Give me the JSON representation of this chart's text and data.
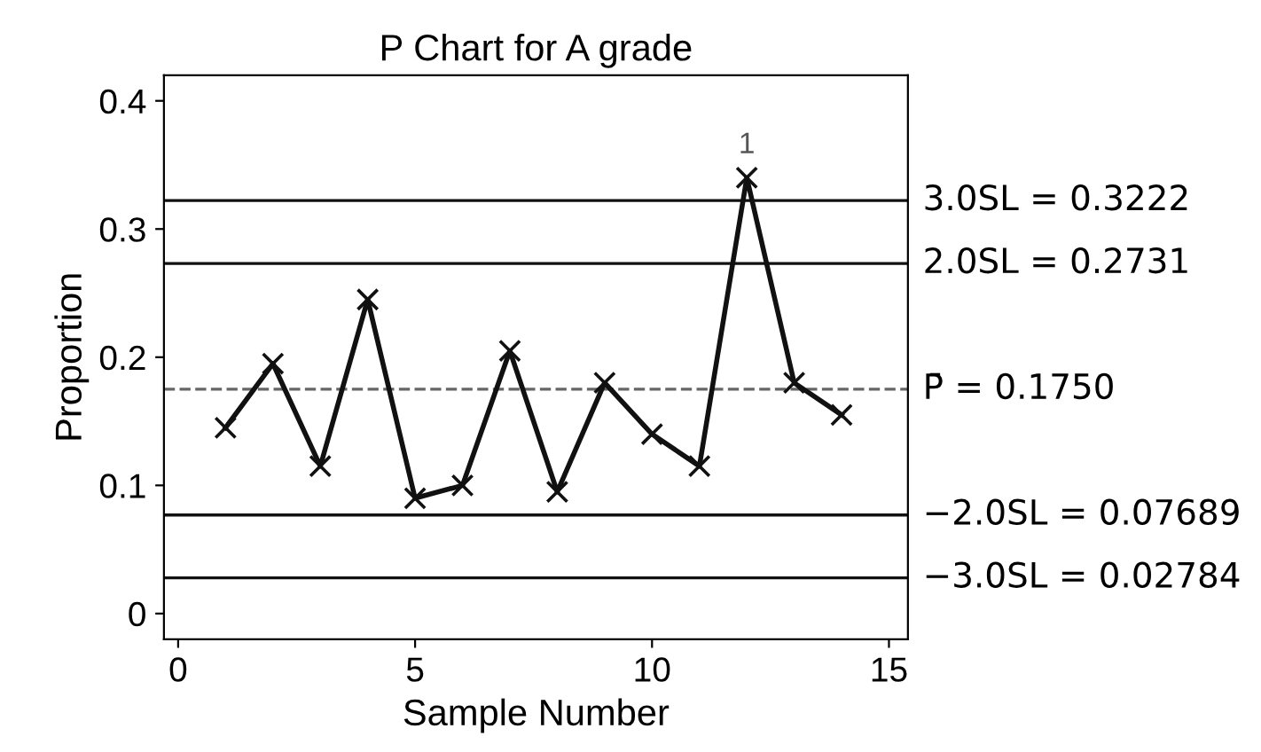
{
  "chart_data": {
    "type": "line",
    "title": "P Chart for A grade",
    "xlabel": "Sample Number",
    "ylabel": "Proportion",
    "x": [
      1,
      2,
      3,
      4,
      5,
      6,
      7,
      8,
      9,
      10,
      11,
      12,
      13,
      14
    ],
    "series": [
      {
        "color": "#111111",
        "values": [
          0.145,
          0.195,
          0.115,
          0.245,
          0.09,
          0.1,
          0.205,
          0.095,
          0.18,
          0.14,
          0.115,
          0.34,
          0.18,
          0.155
        ]
      }
    ],
    "xlim": [
      -0.3,
      15.4
    ],
    "xticks": [
      0,
      5,
      10,
      15
    ],
    "ylim": [
      -0.02,
      0.42
    ],
    "yticks": [
      0,
      0.1,
      0.2,
      0.3,
      0.4
    ],
    "ref_lines": [
      {
        "axis": "y",
        "value": 0.3222,
        "label": "3.0SL = 0.3222",
        "color": "#111111",
        "line_style": "solid"
      },
      {
        "axis": "y",
        "value": 0.2731,
        "label": "2.0SL = 0.2731",
        "color": "#111111",
        "line_style": "solid"
      },
      {
        "axis": "y",
        "value": 0.175,
        "label": "P̄ = 0.1750",
        "color": "#666666",
        "line_style": "dashed"
      },
      {
        "axis": "y",
        "value": 0.07689,
        "label": "−2.0SL = 0.07689",
        "color": "#111111",
        "line_style": "solid"
      },
      {
        "axis": "y",
        "value": 0.02784,
        "label": "−3.0SL = 0.02784",
        "color": "#111111",
        "line_style": "solid"
      }
    ],
    "annotations": [
      {
        "text": "1",
        "x": 12,
        "y": 0.34
      }
    ],
    "marker": "cross",
    "line_style": "solid",
    "grid": false,
    "legend": false
  }
}
